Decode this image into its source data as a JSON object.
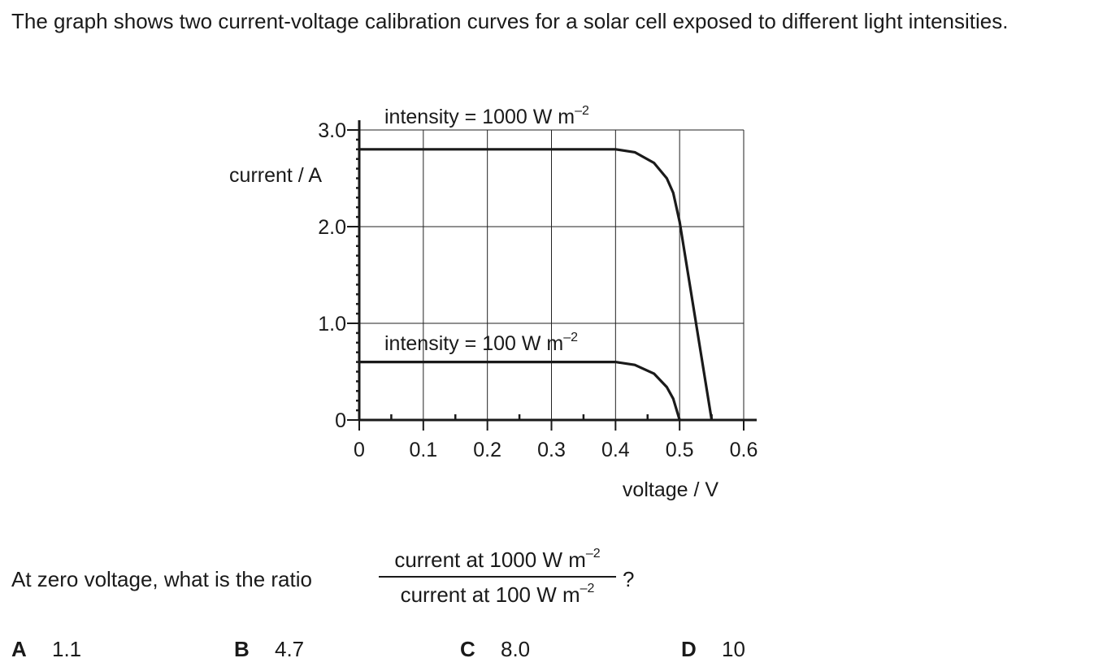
{
  "intro": "The graph shows two current-voltage calibration curves for a solar cell exposed to different light intensities.",
  "question": {
    "prefix": "At zero voltage, what is the ratio",
    "numerator": "current at 1000 W m",
    "numerator_exp": "–2",
    "denominator": "current at 100 W m",
    "denominator_exp": "–2",
    "suffix": "?"
  },
  "options": [
    {
      "letter": "A",
      "value": "1.1"
    },
    {
      "letter": "B",
      "value": "4.7"
    },
    {
      "letter": "C",
      "value": "8.0"
    },
    {
      "letter": "D",
      "value": "10"
    }
  ],
  "chart_data": {
    "type": "line",
    "xlabel": "voltage / V",
    "ylabel": "current / A",
    "xlim": [
      0,
      0.6
    ],
    "ylim": [
      0,
      3.0
    ],
    "x_ticks": [
      "0",
      "0.1",
      "0.2",
      "0.3",
      "0.4",
      "0.5",
      "0.6"
    ],
    "y_ticks": [
      "0",
      "1.0",
      "2.0",
      "3.0"
    ],
    "grid": true,
    "series": [
      {
        "name": "intensity = 1000 W m",
        "name_exp": "–2",
        "x": [
          0,
          0.4,
          0.43,
          0.46,
          0.48,
          0.49,
          0.5,
          0.55
        ],
        "y": [
          2.8,
          2.8,
          2.77,
          2.66,
          2.5,
          2.35,
          2.05,
          0
        ]
      },
      {
        "name": "intensity = 100 W m",
        "name_exp": "–2",
        "x": [
          0,
          0.4,
          0.43,
          0.46,
          0.48,
          0.49,
          0.5
        ],
        "y": [
          0.6,
          0.6,
          0.57,
          0.48,
          0.34,
          0.22,
          0
        ]
      }
    ],
    "line_color": "#1a1a1a"
  }
}
